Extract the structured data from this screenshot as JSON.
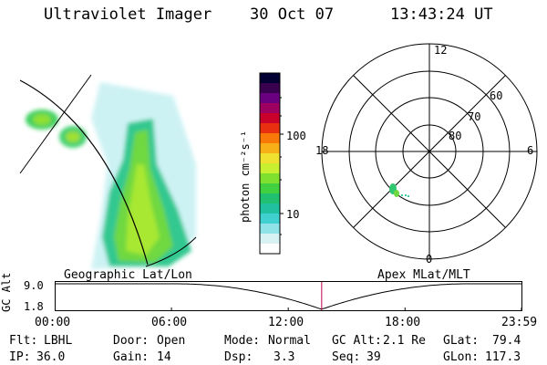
{
  "header": {
    "instrument": "Ultraviolet Imager",
    "date": "30 Oct 07",
    "time": "13:43:24 UT"
  },
  "geo_panel": {
    "label": "Geographic Lat/Lon"
  },
  "colorbar": {
    "unit_label": "photon cm⁻²s⁻¹",
    "tick_100": "100",
    "tick_10": "10",
    "colors": [
      "#000033",
      "#3a0050",
      "#6a0080",
      "#9e0060",
      "#c8002a",
      "#e83010",
      "#f87808",
      "#f8b018",
      "#f0e030",
      "#c8f030",
      "#80e030",
      "#40d040",
      "#20c070",
      "#20c0a0",
      "#40d0d0",
      "#90e4e8",
      "#d8f2f4",
      "#ffffff"
    ]
  },
  "polar_panel": {
    "label": "Apex MLat/MLT",
    "mlt_12": "12",
    "mlt_18": "18",
    "mlt_6": "6",
    "mlt_0": "0",
    "lat_60": "60",
    "lat_70": "70",
    "lat_80": "80"
  },
  "timeline": {
    "axis_label": "GC Alt",
    "y_top": "9.0",
    "y_bottom": "1.8",
    "ticks": [
      "00:00",
      "06:00",
      "12:00",
      "18:00",
      "23:59"
    ],
    "marker_time": "13:43"
  },
  "info": {
    "flt_label": "Flt:",
    "flt_value": "LBHL",
    "ip_label": "IP:",
    "ip_value": "36.0",
    "door_label": "Door:",
    "door_value": "Open",
    "gain_label": "Gain:",
    "gain_value": "14",
    "mode_label": "Mode:",
    "mode_value": "Normal",
    "dsp_label": "Dsp:",
    "dsp_value": "3.3",
    "gcalt_label": "GC Alt:",
    "gcalt_value": "2.1 Re",
    "seq_label": "Seq:",
    "seq_value": "39",
    "glat_label": "GLat:",
    "glat_value": "79.4",
    "glon_label": "GLon:",
    "glon_value": "117.3"
  }
}
